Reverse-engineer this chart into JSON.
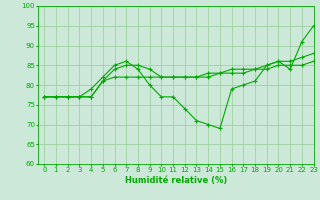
{
  "xlabel": "Humidité relative (%)",
  "xlim": [
    -0.5,
    23
  ],
  "ylim": [
    60,
    100
  ],
  "yticks": [
    60,
    65,
    70,
    75,
    80,
    85,
    90,
    95,
    100
  ],
  "xticks": [
    0,
    1,
    2,
    3,
    4,
    5,
    6,
    7,
    8,
    9,
    10,
    11,
    12,
    13,
    14,
    15,
    16,
    17,
    18,
    19,
    20,
    21,
    22,
    23
  ],
  "background_color": "#cce8d8",
  "grid_color": "#99cc99",
  "line_color": "#00aa00",
  "line1": [
    77,
    77,
    77,
    77,
    77,
    81,
    84,
    85,
    85,
    84,
    82,
    82,
    82,
    82,
    82,
    83,
    83,
    83,
    84,
    84,
    85,
    85,
    85,
    86
  ],
  "line2": [
    77,
    77,
    77,
    77,
    79,
    82,
    85,
    86,
    84,
    80,
    77,
    77,
    74,
    71,
    70,
    69,
    79,
    80,
    81,
    85,
    86,
    84,
    91,
    95
  ],
  "line3": [
    77,
    77,
    77,
    77,
    77,
    81,
    82,
    82,
    82,
    82,
    82,
    82,
    82,
    82,
    83,
    83,
    84,
    84,
    84,
    85,
    86,
    86,
    87,
    88
  ]
}
